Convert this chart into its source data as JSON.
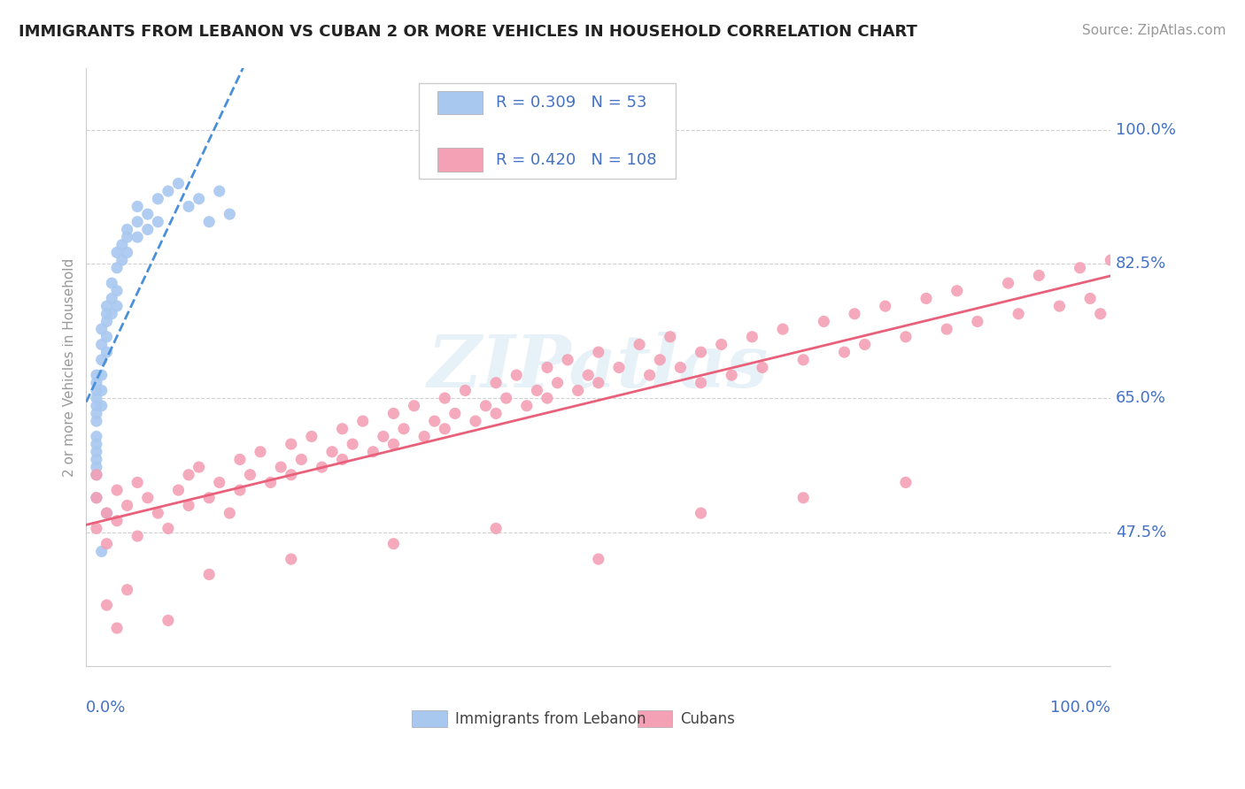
{
  "title": "IMMIGRANTS FROM LEBANON VS CUBAN 2 OR MORE VEHICLES IN HOUSEHOLD CORRELATION CHART",
  "source": "Source: ZipAtlas.com",
  "ylabel": "2 or more Vehicles in Household",
  "legend_label1": "Immigrants from Lebanon",
  "legend_label2": "Cubans",
  "R1": 0.309,
  "N1": 53,
  "R2": 0.42,
  "N2": 108,
  "color1": "#a8c8f0",
  "color2": "#f4a0b5",
  "line_color1": "#4a90d9",
  "line_color2": "#e8607a",
  "axis_label_color": "#4472c4",
  "background_color": "#ffffff",
  "xlim": [
    0.0,
    1.0
  ],
  "ylim": [
    0.3,
    1.08
  ],
  "yticks": [
    0.475,
    0.65,
    0.825,
    1.0
  ],
  "ytick_labels": [
    "47.5%",
    "65.0%",
    "82.5%",
    "100.0%"
  ],
  "watermark": "ZIPatlas",
  "lebanon_x": [
    0.01,
    0.01,
    0.01,
    0.01,
    0.01,
    0.01,
    0.01,
    0.01,
    0.01,
    0.01,
    0.01,
    0.01,
    0.01,
    0.015,
    0.015,
    0.015,
    0.015,
    0.015,
    0.015,
    0.02,
    0.02,
    0.02,
    0.02,
    0.02,
    0.025,
    0.025,
    0.025,
    0.03,
    0.03,
    0.03,
    0.03,
    0.035,
    0.035,
    0.04,
    0.04,
    0.04,
    0.05,
    0.05,
    0.05,
    0.06,
    0.06,
    0.07,
    0.07,
    0.08,
    0.09,
    0.1,
    0.11,
    0.12,
    0.13,
    0.14,
    0.02,
    0.015,
    0.01
  ],
  "lebanon_y": [
    0.56,
    0.58,
    0.6,
    0.62,
    0.64,
    0.66,
    0.68,
    0.57,
    0.59,
    0.63,
    0.65,
    0.55,
    0.67,
    0.7,
    0.72,
    0.74,
    0.68,
    0.66,
    0.64,
    0.75,
    0.77,
    0.73,
    0.71,
    0.76,
    0.78,
    0.8,
    0.76,
    0.82,
    0.84,
    0.79,
    0.77,
    0.83,
    0.85,
    0.87,
    0.86,
    0.84,
    0.88,
    0.86,
    0.9,
    0.89,
    0.87,
    0.91,
    0.88,
    0.92,
    0.93,
    0.9,
    0.91,
    0.88,
    0.92,
    0.89,
    0.5,
    0.45,
    0.52
  ],
  "cuban_x": [
    0.01,
    0.01,
    0.01,
    0.02,
    0.02,
    0.03,
    0.03,
    0.04,
    0.05,
    0.05,
    0.06,
    0.07,
    0.08,
    0.09,
    0.1,
    0.1,
    0.11,
    0.12,
    0.13,
    0.14,
    0.15,
    0.15,
    0.16,
    0.17,
    0.18,
    0.19,
    0.2,
    0.2,
    0.21,
    0.22,
    0.23,
    0.24,
    0.25,
    0.25,
    0.26,
    0.27,
    0.28,
    0.29,
    0.3,
    0.3,
    0.31,
    0.32,
    0.33,
    0.34,
    0.35,
    0.35,
    0.36,
    0.37,
    0.38,
    0.39,
    0.4,
    0.4,
    0.41,
    0.42,
    0.43,
    0.44,
    0.45,
    0.45,
    0.46,
    0.47,
    0.48,
    0.49,
    0.5,
    0.5,
    0.52,
    0.54,
    0.55,
    0.56,
    0.57,
    0.58,
    0.6,
    0.6,
    0.62,
    0.63,
    0.65,
    0.66,
    0.68,
    0.7,
    0.72,
    0.74,
    0.75,
    0.76,
    0.78,
    0.8,
    0.82,
    0.84,
    0.85,
    0.87,
    0.9,
    0.91,
    0.93,
    0.95,
    0.97,
    0.98,
    0.99,
    1.0,
    0.02,
    0.03,
    0.04,
    0.08,
    0.12,
    0.2,
    0.3,
    0.4,
    0.5,
    0.6,
    0.7,
    0.8
  ],
  "cuban_y": [
    0.52,
    0.48,
    0.55,
    0.5,
    0.46,
    0.53,
    0.49,
    0.51,
    0.54,
    0.47,
    0.52,
    0.5,
    0.48,
    0.53,
    0.55,
    0.51,
    0.56,
    0.52,
    0.54,
    0.5,
    0.57,
    0.53,
    0.55,
    0.58,
    0.54,
    0.56,
    0.59,
    0.55,
    0.57,
    0.6,
    0.56,
    0.58,
    0.61,
    0.57,
    0.59,
    0.62,
    0.58,
    0.6,
    0.63,
    0.59,
    0.61,
    0.64,
    0.6,
    0.62,
    0.65,
    0.61,
    0.63,
    0.66,
    0.62,
    0.64,
    0.67,
    0.63,
    0.65,
    0.68,
    0.64,
    0.66,
    0.69,
    0.65,
    0.67,
    0.7,
    0.66,
    0.68,
    0.71,
    0.67,
    0.69,
    0.72,
    0.68,
    0.7,
    0.73,
    0.69,
    0.71,
    0.67,
    0.72,
    0.68,
    0.73,
    0.69,
    0.74,
    0.7,
    0.75,
    0.71,
    0.76,
    0.72,
    0.77,
    0.73,
    0.78,
    0.74,
    0.79,
    0.75,
    0.8,
    0.76,
    0.81,
    0.77,
    0.82,
    0.78,
    0.76,
    0.83,
    0.38,
    0.35,
    0.4,
    0.36,
    0.42,
    0.44,
    0.46,
    0.48,
    0.44,
    0.5,
    0.52,
    0.54
  ]
}
